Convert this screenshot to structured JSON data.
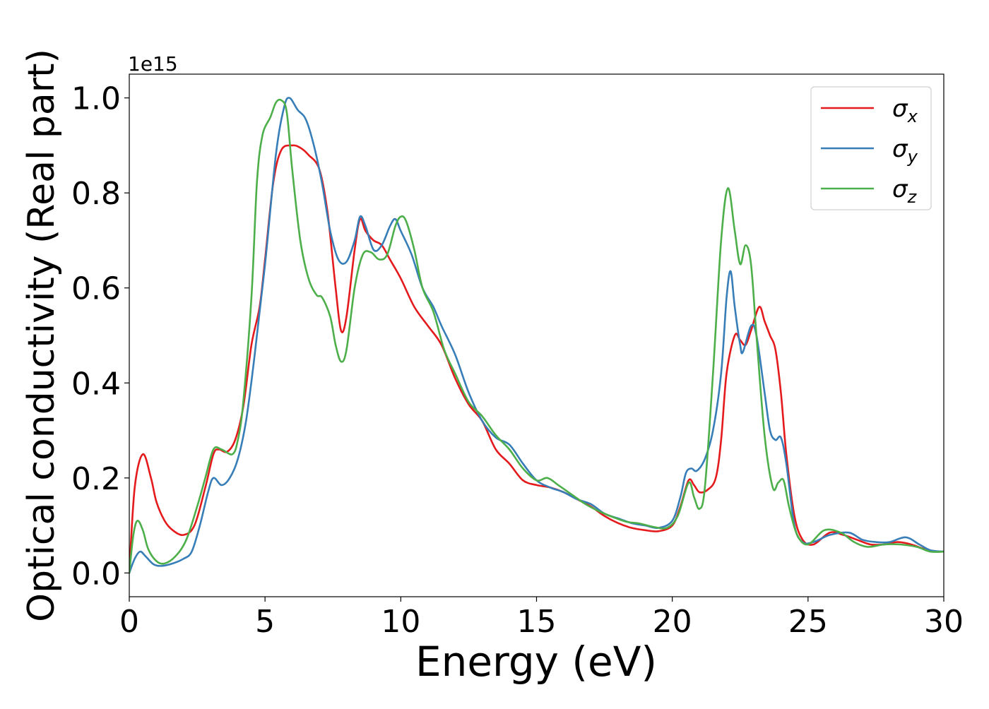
{
  "chart_data": {
    "type": "line",
    "title": "",
    "xlabel": "Energy (eV)",
    "ylabel": "Optical conductivity (Real part)",
    "offset_text": "1e15",
    "xlim": [
      0,
      30
    ],
    "ylim": [
      -0.05,
      1.05
    ],
    "x_ticks": [
      0,
      5,
      10,
      15,
      20,
      25,
      30
    ],
    "x_tick_labels": [
      "0",
      "5",
      "10",
      "15",
      "20",
      "25",
      "30"
    ],
    "y_ticks": [
      0.0,
      0.2,
      0.4,
      0.6,
      0.8,
      1.0
    ],
    "y_tick_labels": [
      "0.0",
      "0.2",
      "0.4",
      "0.6",
      "0.8",
      "1.0"
    ],
    "grid": false,
    "legend_position": "top-right",
    "series": [
      {
        "name": "σ",
        "subscript": "x",
        "color": "#e41a1c",
        "points": [
          [
            0,
            0
          ],
          [
            0.2,
            0.18
          ],
          [
            0.5,
            0.25
          ],
          [
            0.8,
            0.2
          ],
          [
            1.0,
            0.15
          ],
          [
            1.3,
            0.11
          ],
          [
            1.6,
            0.09
          ],
          [
            2.0,
            0.08
          ],
          [
            2.4,
            0.1
          ],
          [
            2.8,
            0.18
          ],
          [
            3.1,
            0.25
          ],
          [
            3.3,
            0.26
          ],
          [
            3.6,
            0.255
          ],
          [
            3.9,
            0.28
          ],
          [
            4.2,
            0.35
          ],
          [
            4.5,
            0.48
          ],
          [
            4.8,
            0.56
          ],
          [
            5.0,
            0.66
          ],
          [
            5.3,
            0.82
          ],
          [
            5.6,
            0.89
          ],
          [
            6.0,
            0.9
          ],
          [
            6.3,
            0.895
          ],
          [
            6.6,
            0.88
          ],
          [
            7.0,
            0.85
          ],
          [
            7.3,
            0.76
          ],
          [
            7.6,
            0.6
          ],
          [
            7.8,
            0.51
          ],
          [
            8.0,
            0.54
          ],
          [
            8.3,
            0.68
          ],
          [
            8.5,
            0.745
          ],
          [
            8.7,
            0.72
          ],
          [
            9.0,
            0.7
          ],
          [
            9.3,
            0.69
          ],
          [
            9.6,
            0.66
          ],
          [
            10.0,
            0.62
          ],
          [
            10.5,
            0.56
          ],
          [
            11.0,
            0.52
          ],
          [
            11.5,
            0.48
          ],
          [
            12.0,
            0.41
          ],
          [
            12.5,
            0.355
          ],
          [
            13.0,
            0.32
          ],
          [
            13.5,
            0.26
          ],
          [
            14.0,
            0.23
          ],
          [
            14.5,
            0.195
          ],
          [
            15.0,
            0.185
          ],
          [
            15.5,
            0.18
          ],
          [
            16.0,
            0.17
          ],
          [
            16.5,
            0.155
          ],
          [
            17.0,
            0.14
          ],
          [
            17.5,
            0.12
          ],
          [
            18.0,
            0.105
          ],
          [
            18.5,
            0.095
          ],
          [
            19.0,
            0.09
          ],
          [
            19.5,
            0.088
          ],
          [
            20.0,
            0.1
          ],
          [
            20.3,
            0.14
          ],
          [
            20.6,
            0.195
          ],
          [
            20.8,
            0.185
          ],
          [
            21.0,
            0.17
          ],
          [
            21.3,
            0.175
          ],
          [
            21.6,
            0.2
          ],
          [
            21.8,
            0.28
          ],
          [
            22.0,
            0.42
          ],
          [
            22.3,
            0.5
          ],
          [
            22.5,
            0.49
          ],
          [
            22.7,
            0.48
          ],
          [
            22.9,
            0.51
          ],
          [
            23.2,
            0.56
          ],
          [
            23.4,
            0.53
          ],
          [
            23.6,
            0.5
          ],
          [
            23.8,
            0.47
          ],
          [
            24.0,
            0.38
          ],
          [
            24.2,
            0.25
          ],
          [
            24.5,
            0.12
          ],
          [
            24.8,
            0.07
          ],
          [
            25.2,
            0.06
          ],
          [
            25.8,
            0.085
          ],
          [
            26.3,
            0.08
          ],
          [
            26.8,
            0.07
          ],
          [
            27.3,
            0.06
          ],
          [
            27.8,
            0.06
          ],
          [
            28.3,
            0.065
          ],
          [
            28.8,
            0.06
          ],
          [
            29.3,
            0.05
          ],
          [
            29.7,
            0.045
          ],
          [
            30.0,
            0.045
          ]
        ]
      },
      {
        "name": "σ",
        "subscript": "y",
        "color": "#377eb8",
        "points": [
          [
            0,
            0
          ],
          [
            0.2,
            0.03
          ],
          [
            0.4,
            0.045
          ],
          [
            0.6,
            0.035
          ],
          [
            0.9,
            0.018
          ],
          [
            1.2,
            0.015
          ],
          [
            1.6,
            0.02
          ],
          [
            2.0,
            0.03
          ],
          [
            2.3,
            0.045
          ],
          [
            2.6,
            0.1
          ],
          [
            2.9,
            0.17
          ],
          [
            3.1,
            0.2
          ],
          [
            3.4,
            0.185
          ],
          [
            3.7,
            0.2
          ],
          [
            4.0,
            0.24
          ],
          [
            4.3,
            0.32
          ],
          [
            4.6,
            0.45
          ],
          [
            5.0,
            0.65
          ],
          [
            5.4,
            0.88
          ],
          [
            5.7,
            0.98
          ],
          [
            5.9,
            1.0
          ],
          [
            6.2,
            0.975
          ],
          [
            6.5,
            0.955
          ],
          [
            6.8,
            0.9
          ],
          [
            7.1,
            0.82
          ],
          [
            7.4,
            0.72
          ],
          [
            7.7,
            0.66
          ],
          [
            8.0,
            0.655
          ],
          [
            8.3,
            0.7
          ],
          [
            8.5,
            0.75
          ],
          [
            8.7,
            0.73
          ],
          [
            9.0,
            0.68
          ],
          [
            9.3,
            0.69
          ],
          [
            9.6,
            0.73
          ],
          [
            9.8,
            0.745
          ],
          [
            10.0,
            0.72
          ],
          [
            10.4,
            0.67
          ],
          [
            10.8,
            0.6
          ],
          [
            11.2,
            0.56
          ],
          [
            11.5,
            0.52
          ],
          [
            12.0,
            0.46
          ],
          [
            12.5,
            0.38
          ],
          [
            13.0,
            0.32
          ],
          [
            13.5,
            0.285
          ],
          [
            14.0,
            0.27
          ],
          [
            14.5,
            0.23
          ],
          [
            15.0,
            0.195
          ],
          [
            15.5,
            0.18
          ],
          [
            16.0,
            0.17
          ],
          [
            16.5,
            0.155
          ],
          [
            17.0,
            0.145
          ],
          [
            17.5,
            0.125
          ],
          [
            18.0,
            0.115
          ],
          [
            18.5,
            0.105
          ],
          [
            19.0,
            0.1
          ],
          [
            19.5,
            0.095
          ],
          [
            20.0,
            0.11
          ],
          [
            20.3,
            0.16
          ],
          [
            20.5,
            0.21
          ],
          [
            20.7,
            0.22
          ],
          [
            20.9,
            0.215
          ],
          [
            21.2,
            0.24
          ],
          [
            21.5,
            0.3
          ],
          [
            21.8,
            0.42
          ],
          [
            22.0,
            0.58
          ],
          [
            22.15,
            0.635
          ],
          [
            22.3,
            0.56
          ],
          [
            22.5,
            0.48
          ],
          [
            22.6,
            0.465
          ],
          [
            22.9,
            0.52
          ],
          [
            23.1,
            0.5
          ],
          [
            23.4,
            0.38
          ],
          [
            23.6,
            0.3
          ],
          [
            23.8,
            0.28
          ],
          [
            24.0,
            0.285
          ],
          [
            24.2,
            0.23
          ],
          [
            24.5,
            0.1
          ],
          [
            24.8,
            0.065
          ],
          [
            25.2,
            0.065
          ],
          [
            25.8,
            0.08
          ],
          [
            26.5,
            0.085
          ],
          [
            27.0,
            0.07
          ],
          [
            27.5,
            0.065
          ],
          [
            28.0,
            0.065
          ],
          [
            28.6,
            0.075
          ],
          [
            29.1,
            0.06
          ],
          [
            29.5,
            0.048
          ],
          [
            30.0,
            0.045
          ]
        ]
      },
      {
        "name": "σ",
        "subscript": "z",
        "color": "#4daf4a",
        "points": [
          [
            0,
            0
          ],
          [
            0.15,
            0.08
          ],
          [
            0.3,
            0.11
          ],
          [
            0.5,
            0.09
          ],
          [
            0.7,
            0.05
          ],
          [
            1.0,
            0.025
          ],
          [
            1.3,
            0.02
          ],
          [
            1.7,
            0.035
          ],
          [
            2.1,
            0.07
          ],
          [
            2.5,
            0.14
          ],
          [
            2.8,
            0.2
          ],
          [
            3.1,
            0.26
          ],
          [
            3.4,
            0.26
          ],
          [
            3.8,
            0.25
          ],
          [
            4.0,
            0.28
          ],
          [
            4.2,
            0.36
          ],
          [
            4.5,
            0.58
          ],
          [
            4.7,
            0.82
          ],
          [
            4.9,
            0.92
          ],
          [
            5.2,
            0.96
          ],
          [
            5.4,
            0.99
          ],
          [
            5.6,
            0.995
          ],
          [
            5.8,
            0.97
          ],
          [
            6.0,
            0.85
          ],
          [
            6.3,
            0.7
          ],
          [
            6.6,
            0.62
          ],
          [
            6.9,
            0.585
          ],
          [
            7.1,
            0.58
          ],
          [
            7.4,
            0.54
          ],
          [
            7.6,
            0.48
          ],
          [
            7.8,
            0.445
          ],
          [
            8.0,
            0.47
          ],
          [
            8.3,
            0.6
          ],
          [
            8.6,
            0.67
          ],
          [
            8.9,
            0.675
          ],
          [
            9.2,
            0.66
          ],
          [
            9.5,
            0.67
          ],
          [
            9.8,
            0.73
          ],
          [
            10.0,
            0.75
          ],
          [
            10.2,
            0.74
          ],
          [
            10.5,
            0.68
          ],
          [
            10.8,
            0.6
          ],
          [
            11.2,
            0.55
          ],
          [
            11.6,
            0.47
          ],
          [
            12.0,
            0.42
          ],
          [
            12.5,
            0.36
          ],
          [
            13.0,
            0.33
          ],
          [
            13.5,
            0.29
          ],
          [
            14.0,
            0.26
          ],
          [
            14.5,
            0.22
          ],
          [
            15.0,
            0.195
          ],
          [
            15.4,
            0.2
          ],
          [
            15.8,
            0.185
          ],
          [
            16.3,
            0.165
          ],
          [
            16.8,
            0.145
          ],
          [
            17.3,
            0.13
          ],
          [
            17.8,
            0.118
          ],
          [
            18.3,
            0.108
          ],
          [
            18.8,
            0.104
          ],
          [
            19.3,
            0.097
          ],
          [
            19.8,
            0.095
          ],
          [
            20.2,
            0.12
          ],
          [
            20.6,
            0.19
          ],
          [
            20.8,
            0.16
          ],
          [
            21.0,
            0.135
          ],
          [
            21.2,
            0.18
          ],
          [
            21.5,
            0.42
          ],
          [
            21.8,
            0.7
          ],
          [
            22.05,
            0.81
          ],
          [
            22.3,
            0.72
          ],
          [
            22.5,
            0.65
          ],
          [
            22.7,
            0.69
          ],
          [
            22.9,
            0.65
          ],
          [
            23.1,
            0.5
          ],
          [
            23.4,
            0.29
          ],
          [
            23.7,
            0.18
          ],
          [
            23.9,
            0.19
          ],
          [
            24.1,
            0.195
          ],
          [
            24.3,
            0.14
          ],
          [
            24.6,
            0.08
          ],
          [
            25.0,
            0.06
          ],
          [
            25.6,
            0.09
          ],
          [
            26.2,
            0.085
          ],
          [
            26.7,
            0.065
          ],
          [
            27.2,
            0.055
          ],
          [
            27.8,
            0.06
          ],
          [
            28.4,
            0.06
          ],
          [
            29.0,
            0.055
          ],
          [
            29.5,
            0.045
          ],
          [
            30.0,
            0.045
          ]
        ]
      }
    ]
  }
}
